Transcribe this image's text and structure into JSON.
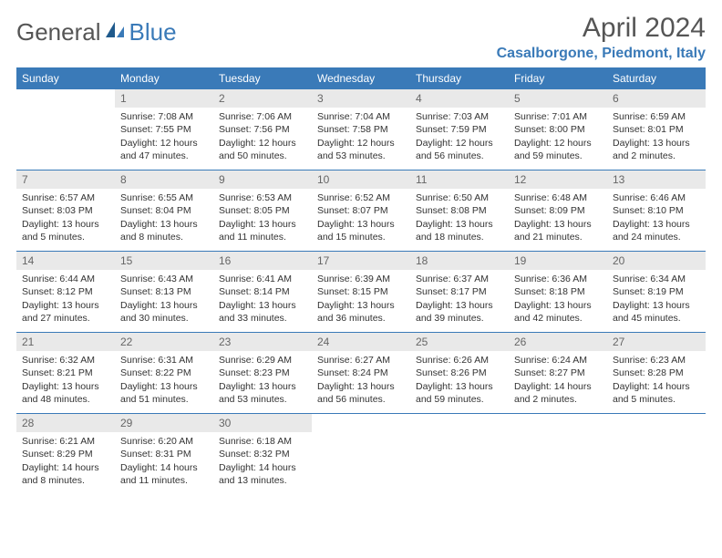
{
  "logo": {
    "text1": "General",
    "text2": "Blue"
  },
  "title": "April 2024",
  "location": "Casalborgone, Piedmont, Italy",
  "colors": {
    "header_bg": "#3a7ab8",
    "header_text": "#ffffff",
    "daynum_bg": "#e9e9e9",
    "daynum_text": "#666666",
    "border": "#3a7ab8",
    "accent": "#3a7ab8"
  },
  "days_of_week": [
    "Sunday",
    "Monday",
    "Tuesday",
    "Wednesday",
    "Thursday",
    "Friday",
    "Saturday"
  ],
  "weeks": [
    [
      null,
      {
        "n": "1",
        "sr": "Sunrise: 7:08 AM",
        "ss": "Sunset: 7:55 PM",
        "dl": "Daylight: 12 hours and 47 minutes."
      },
      {
        "n": "2",
        "sr": "Sunrise: 7:06 AM",
        "ss": "Sunset: 7:56 PM",
        "dl": "Daylight: 12 hours and 50 minutes."
      },
      {
        "n": "3",
        "sr": "Sunrise: 7:04 AM",
        "ss": "Sunset: 7:58 PM",
        "dl": "Daylight: 12 hours and 53 minutes."
      },
      {
        "n": "4",
        "sr": "Sunrise: 7:03 AM",
        "ss": "Sunset: 7:59 PM",
        "dl": "Daylight: 12 hours and 56 minutes."
      },
      {
        "n": "5",
        "sr": "Sunrise: 7:01 AM",
        "ss": "Sunset: 8:00 PM",
        "dl": "Daylight: 12 hours and 59 minutes."
      },
      {
        "n": "6",
        "sr": "Sunrise: 6:59 AM",
        "ss": "Sunset: 8:01 PM",
        "dl": "Daylight: 13 hours and 2 minutes."
      }
    ],
    [
      {
        "n": "7",
        "sr": "Sunrise: 6:57 AM",
        "ss": "Sunset: 8:03 PM",
        "dl": "Daylight: 13 hours and 5 minutes."
      },
      {
        "n": "8",
        "sr": "Sunrise: 6:55 AM",
        "ss": "Sunset: 8:04 PM",
        "dl": "Daylight: 13 hours and 8 minutes."
      },
      {
        "n": "9",
        "sr": "Sunrise: 6:53 AM",
        "ss": "Sunset: 8:05 PM",
        "dl": "Daylight: 13 hours and 11 minutes."
      },
      {
        "n": "10",
        "sr": "Sunrise: 6:52 AM",
        "ss": "Sunset: 8:07 PM",
        "dl": "Daylight: 13 hours and 15 minutes."
      },
      {
        "n": "11",
        "sr": "Sunrise: 6:50 AM",
        "ss": "Sunset: 8:08 PM",
        "dl": "Daylight: 13 hours and 18 minutes."
      },
      {
        "n": "12",
        "sr": "Sunrise: 6:48 AM",
        "ss": "Sunset: 8:09 PM",
        "dl": "Daylight: 13 hours and 21 minutes."
      },
      {
        "n": "13",
        "sr": "Sunrise: 6:46 AM",
        "ss": "Sunset: 8:10 PM",
        "dl": "Daylight: 13 hours and 24 minutes."
      }
    ],
    [
      {
        "n": "14",
        "sr": "Sunrise: 6:44 AM",
        "ss": "Sunset: 8:12 PM",
        "dl": "Daylight: 13 hours and 27 minutes."
      },
      {
        "n": "15",
        "sr": "Sunrise: 6:43 AM",
        "ss": "Sunset: 8:13 PM",
        "dl": "Daylight: 13 hours and 30 minutes."
      },
      {
        "n": "16",
        "sr": "Sunrise: 6:41 AM",
        "ss": "Sunset: 8:14 PM",
        "dl": "Daylight: 13 hours and 33 minutes."
      },
      {
        "n": "17",
        "sr": "Sunrise: 6:39 AM",
        "ss": "Sunset: 8:15 PM",
        "dl": "Daylight: 13 hours and 36 minutes."
      },
      {
        "n": "18",
        "sr": "Sunrise: 6:37 AM",
        "ss": "Sunset: 8:17 PM",
        "dl": "Daylight: 13 hours and 39 minutes."
      },
      {
        "n": "19",
        "sr": "Sunrise: 6:36 AM",
        "ss": "Sunset: 8:18 PM",
        "dl": "Daylight: 13 hours and 42 minutes."
      },
      {
        "n": "20",
        "sr": "Sunrise: 6:34 AM",
        "ss": "Sunset: 8:19 PM",
        "dl": "Daylight: 13 hours and 45 minutes."
      }
    ],
    [
      {
        "n": "21",
        "sr": "Sunrise: 6:32 AM",
        "ss": "Sunset: 8:21 PM",
        "dl": "Daylight: 13 hours and 48 minutes."
      },
      {
        "n": "22",
        "sr": "Sunrise: 6:31 AM",
        "ss": "Sunset: 8:22 PM",
        "dl": "Daylight: 13 hours and 51 minutes."
      },
      {
        "n": "23",
        "sr": "Sunrise: 6:29 AM",
        "ss": "Sunset: 8:23 PM",
        "dl": "Daylight: 13 hours and 53 minutes."
      },
      {
        "n": "24",
        "sr": "Sunrise: 6:27 AM",
        "ss": "Sunset: 8:24 PM",
        "dl": "Daylight: 13 hours and 56 minutes."
      },
      {
        "n": "25",
        "sr": "Sunrise: 6:26 AM",
        "ss": "Sunset: 8:26 PM",
        "dl": "Daylight: 13 hours and 59 minutes."
      },
      {
        "n": "26",
        "sr": "Sunrise: 6:24 AM",
        "ss": "Sunset: 8:27 PM",
        "dl": "Daylight: 14 hours and 2 minutes."
      },
      {
        "n": "27",
        "sr": "Sunrise: 6:23 AM",
        "ss": "Sunset: 8:28 PM",
        "dl": "Daylight: 14 hours and 5 minutes."
      }
    ],
    [
      {
        "n": "28",
        "sr": "Sunrise: 6:21 AM",
        "ss": "Sunset: 8:29 PM",
        "dl": "Daylight: 14 hours and 8 minutes."
      },
      {
        "n": "29",
        "sr": "Sunrise: 6:20 AM",
        "ss": "Sunset: 8:31 PM",
        "dl": "Daylight: 14 hours and 11 minutes."
      },
      {
        "n": "30",
        "sr": "Sunrise: 6:18 AM",
        "ss": "Sunset: 8:32 PM",
        "dl": "Daylight: 14 hours and 13 minutes."
      },
      null,
      null,
      null,
      null
    ]
  ]
}
